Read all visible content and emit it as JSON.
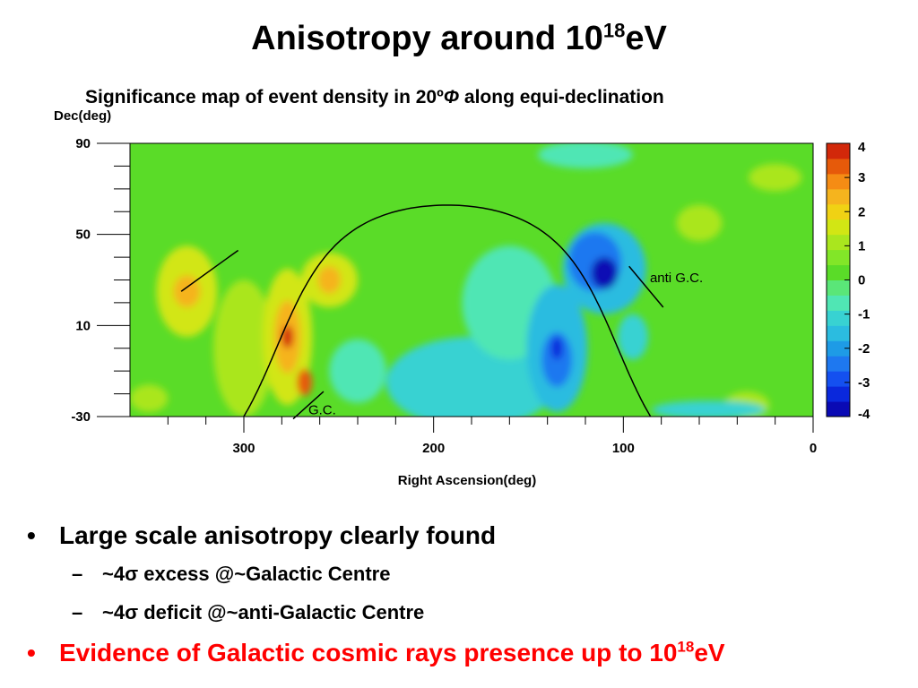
{
  "slide": {
    "title_main": "Anisotropy around 10",
    "title_sup": "18",
    "title_unit": "eV",
    "subtitle_prefix": "Significance map of event density in 20º",
    "subtitle_phi": "Φ",
    "subtitle_suffix": " along equi-declination"
  },
  "bullets": [
    {
      "marker": "•",
      "text": "Large scale anisotropy clearly found"
    },
    {
      "marker": "–",
      "text": "~4σ excess @~Galactic Centre"
    },
    {
      "marker": "–",
      "text": "~4σ deficit @~anti-Galactic Centre"
    },
    {
      "marker": "•",
      "text_main": "Evidence of Galactic cosmic rays presence up to 10",
      "text_sup": "18",
      "text_unit": "eV",
      "color": "#ff0000"
    }
  ],
  "chart_data": {
    "type": "heatmap",
    "xlabel": "Right Ascension(deg)",
    "ylabel": "Dec(deg)",
    "xlim": [
      360,
      0
    ],
    "ylim": [
      -30,
      90
    ],
    "x_ticks": [
      300,
      200,
      100,
      0
    ],
    "y_ticks": [
      90,
      50,
      10,
      -30
    ],
    "colorbar": {
      "range": [
        -4,
        4
      ],
      "ticks": [
        4,
        3,
        2,
        1,
        0,
        -1,
        -2,
        -3,
        -4
      ],
      "colors": [
        "#0a0ab4",
        "#0a28dc",
        "#1450f0",
        "#1e78f0",
        "#1e9be6",
        "#2bbce0",
        "#38d2d2",
        "#50e6b4",
        "#5ae678",
        "#5adc28",
        "#82e628",
        "#aae61e",
        "#d2e614",
        "#f0d214",
        "#f5b41e",
        "#f58c14",
        "#e65a0a",
        "#d2280a"
      ]
    },
    "features": [
      {
        "name": "excess",
        "ra": 277,
        "dec": 5,
        "significance": 4.0
      },
      {
        "name": "excess",
        "ra": 268,
        "dec": -15,
        "significance": 3.2
      },
      {
        "name": "excess",
        "ra": 330,
        "dec": 25,
        "significance": 2.6
      },
      {
        "name": "excess",
        "ra": 255,
        "dec": 30,
        "significance": 2.3
      },
      {
        "name": "deficit",
        "ra": 110,
        "dec": 35,
        "significance": -3.6
      },
      {
        "name": "deficit",
        "ra": 135,
        "dec": 0,
        "significance": -3.2
      }
    ],
    "annotations": [
      {
        "text": "G.C.",
        "ra": 266,
        "dec": -29
      },
      {
        "text": "anti G.C.",
        "ra": 86,
        "dec": 29
      }
    ]
  }
}
